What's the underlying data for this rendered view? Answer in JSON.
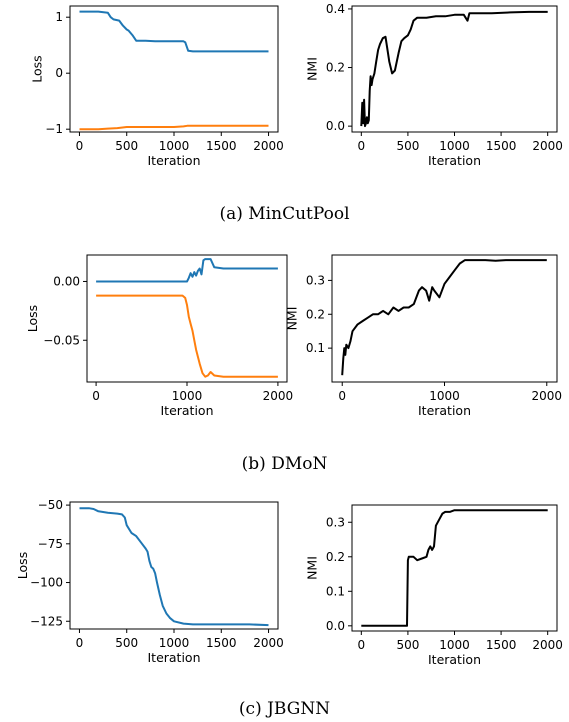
{
  "captions": [
    "(a)  MinCutPool",
    "(b)  DMoN",
    "(c)  JBGNN"
  ],
  "colors": {
    "series1": "#1f77b4",
    "series2": "#ff7f0e",
    "nmi": "#000000"
  },
  "chart_data": [
    {
      "type": "line",
      "xlabel": "Iteration",
      "ylabel": "Loss",
      "xlim": [
        -100,
        2100
      ],
      "ylim": [
        -1.05,
        1.2
      ],
      "xticks": [
        0,
        500,
        1000,
        1500,
        2000
      ],
      "xtick_labels": [
        "0",
        "500",
        "1000",
        "1500",
        "2000"
      ],
      "yticks": [
        -1,
        0,
        1
      ],
      "ytick_labels": [
        "−1",
        "0",
        "1"
      ],
      "series": [
        {
          "color": "#1f77b4",
          "x": [
            0,
            100,
            200,
            300,
            330,
            360,
            420,
            460,
            500,
            520,
            560,
            600,
            700,
            800,
            900,
            1000,
            1100,
            1120,
            1150,
            1200,
            1400,
            1600,
            1800,
            2000
          ],
          "y": [
            1.1,
            1.1,
            1.1,
            1.08,
            1.0,
            0.96,
            0.94,
            0.85,
            0.78,
            0.76,
            0.68,
            0.58,
            0.58,
            0.57,
            0.57,
            0.57,
            0.57,
            0.55,
            0.4,
            0.39,
            0.39,
            0.39,
            0.39,
            0.39
          ]
        },
        {
          "color": "#ff7f0e",
          "x": [
            0,
            100,
            200,
            300,
            400,
            500,
            600,
            700,
            800,
            900,
            1000,
            1100,
            1140,
            1200,
            1400,
            1600,
            1800,
            2000
          ],
          "y": [
            -1.0,
            -1.0,
            -1.0,
            -0.99,
            -0.98,
            -0.96,
            -0.96,
            -0.96,
            -0.96,
            -0.96,
            -0.96,
            -0.95,
            -0.94,
            -0.94,
            -0.94,
            -0.94,
            -0.94,
            -0.94
          ]
        }
      ]
    },
    {
      "type": "line",
      "xlabel": "Iteration",
      "ylabel": "NMI",
      "xlim": [
        -100,
        2100
      ],
      "ylim": [
        -0.02,
        0.41
      ],
      "xticks": [
        0,
        500,
        1000,
        1500,
        2000
      ],
      "xtick_labels": [
        "0",
        "500",
        "1000",
        "1500",
        "2000"
      ],
      "yticks": [
        0.0,
        0.2,
        0.4
      ],
      "ytick_labels": [
        "0.0",
        "0.2",
        "0.4"
      ],
      "series": [
        {
          "color": "#000000",
          "x": [
            0,
            10,
            20,
            30,
            40,
            50,
            60,
            70,
            80,
            90,
            100,
            110,
            120,
            140,
            160,
            180,
            200,
            230,
            260,
            300,
            330,
            360,
            400,
            430,
            460,
            500,
            530,
            560,
            600,
            700,
            800,
            900,
            1000,
            1100,
            1140,
            1160,
            1200,
            1400,
            1600,
            1800,
            2000
          ],
          "y": [
            0.0,
            0.08,
            0.01,
            0.09,
            0.0,
            0.01,
            0.03,
            0.01,
            0.02,
            0.12,
            0.17,
            0.14,
            0.16,
            0.18,
            0.22,
            0.26,
            0.28,
            0.3,
            0.305,
            0.22,
            0.18,
            0.19,
            0.25,
            0.29,
            0.3,
            0.31,
            0.33,
            0.36,
            0.37,
            0.37,
            0.375,
            0.375,
            0.38,
            0.38,
            0.36,
            0.385,
            0.385,
            0.385,
            0.388,
            0.39,
            0.39
          ]
        }
      ]
    },
    {
      "type": "line",
      "xlabel": "Iteration",
      "ylabel": "Loss",
      "xlim": [
        -100,
        2100
      ],
      "ylim": [
        -0.0855,
        0.0225
      ],
      "xticks": [
        0,
        1000,
        2000
      ],
      "xtick_labels": [
        "0",
        "1000",
        "2000"
      ],
      "yticks": [
        0.0,
        -0.05
      ],
      "ytick_labels": [
        "0.00",
        "−0.05"
      ],
      "series": [
        {
          "color": "#1f77b4",
          "x": [
            0,
            200,
            400,
            600,
            800,
            1000,
            1020,
            1040,
            1060,
            1080,
            1100,
            1120,
            1140,
            1160,
            1180,
            1200,
            1220,
            1260,
            1300,
            1400,
            1600,
            1800,
            2000
          ],
          "y": [
            0.0,
            0.0,
            0.0,
            0.0,
            0.0,
            0.0,
            0.003,
            0.007,
            0.004,
            0.008,
            0.005,
            0.009,
            0.011,
            0.006,
            0.018,
            0.019,
            0.019,
            0.019,
            0.012,
            0.011,
            0.011,
            0.011,
            0.011
          ]
        },
        {
          "color": "#ff7f0e",
          "x": [
            0,
            200,
            400,
            600,
            800,
            950,
            980,
            1000,
            1020,
            1040,
            1060,
            1080,
            1100,
            1140,
            1170,
            1200,
            1230,
            1260,
            1300,
            1400,
            1600,
            1800,
            2000
          ],
          "y": [
            -0.012,
            -0.012,
            -0.012,
            -0.012,
            -0.012,
            -0.012,
            -0.014,
            -0.02,
            -0.03,
            -0.036,
            -0.042,
            -0.05,
            -0.058,
            -0.07,
            -0.078,
            -0.081,
            -0.08,
            -0.077,
            -0.08,
            -0.081,
            -0.081,
            -0.081,
            -0.081
          ]
        }
      ]
    },
    {
      "type": "line",
      "xlabel": "Iteration",
      "ylabel": "NMI",
      "xlim": [
        -100,
        2100
      ],
      "ylim": [
        0.0,
        0.375
      ],
      "xticks": [
        0,
        1000,
        2000
      ],
      "xtick_labels": [
        "0",
        "1000",
        "2000"
      ],
      "yticks": [
        0.1,
        0.2,
        0.3
      ],
      "ytick_labels": [
        "0.1",
        "0.2",
        "0.3"
      ],
      "series": [
        {
          "color": "#000000",
          "x": [
            0,
            10,
            20,
            30,
            40,
            60,
            80,
            100,
            150,
            200,
            250,
            300,
            350,
            400,
            450,
            500,
            550,
            600,
            650,
            700,
            750,
            780,
            820,
            850,
            880,
            900,
            950,
            1000,
            1050,
            1100,
            1150,
            1200,
            1250,
            1300,
            1400,
            1500,
            1600,
            1800,
            2000
          ],
          "y": [
            0.02,
            0.07,
            0.1,
            0.08,
            0.11,
            0.1,
            0.12,
            0.15,
            0.17,
            0.18,
            0.19,
            0.2,
            0.2,
            0.21,
            0.2,
            0.22,
            0.21,
            0.22,
            0.22,
            0.23,
            0.27,
            0.28,
            0.27,
            0.24,
            0.28,
            0.27,
            0.25,
            0.29,
            0.31,
            0.33,
            0.35,
            0.36,
            0.36,
            0.36,
            0.36,
            0.358,
            0.36,
            0.36,
            0.36
          ]
        }
      ]
    },
    {
      "type": "line",
      "xlabel": "Iteration",
      "ylabel": "Loss",
      "xlim": [
        -100,
        2100
      ],
      "ylim": [
        -130,
        -48
      ],
      "xticks": [
        0,
        500,
        1000,
        1500,
        2000
      ],
      "xtick_labels": [
        "0",
        "500",
        "1000",
        "1500",
        "2000"
      ],
      "yticks": [
        -50,
        -75,
        -100,
        -125
      ],
      "ytick_labels": [
        "−50",
        "−75",
        "−100",
        "−125"
      ],
      "series": [
        {
          "color": "#1f77b4",
          "x": [
            0,
            100,
            150,
            200,
            300,
            400,
            450,
            480,
            500,
            550,
            600,
            650,
            700,
            720,
            740,
            760,
            780,
            800,
            820,
            850,
            880,
            920,
            960,
            1000,
            1100,
            1200,
            1400,
            1600,
            1800,
            2000
          ],
          "y": [
            -52,
            -52,
            -52.5,
            -54,
            -55,
            -55.5,
            -56,
            -58,
            -63,
            -68,
            -70,
            -74,
            -78,
            -80,
            -86,
            -90,
            -91,
            -94,
            -100,
            -108,
            -115,
            -120,
            -123,
            -125,
            -126.5,
            -127,
            -127,
            -127,
            -127,
            -127.5
          ]
        }
      ]
    },
    {
      "type": "line",
      "xlabel": "Iteration",
      "ylabel": "NMI",
      "xlim": [
        -100,
        2100
      ],
      "ylim": [
        -0.015,
        0.35
      ],
      "xticks": [
        0,
        500,
        1000,
        1500,
        2000
      ],
      "xtick_labels": [
        "0",
        "500",
        "1000",
        "1500",
        "2000"
      ],
      "yticks": [
        0.0,
        0.1,
        0.2,
        0.3
      ],
      "ytick_labels": [
        "0.0",
        "0.1",
        "0.2",
        "0.3"
      ],
      "series": [
        {
          "color": "#000000",
          "x": [
            0,
            100,
            200,
            300,
            400,
            490,
            500,
            510,
            530,
            560,
            600,
            650,
            700,
            720,
            740,
            760,
            780,
            800,
            820,
            840,
            870,
            900,
            950,
            1000,
            1200,
            1400,
            1600,
            1800,
            2000
          ],
          "y": [
            0.0,
            0.0,
            0.0,
            0.0,
            0.0,
            0.0,
            0.19,
            0.2,
            0.2,
            0.2,
            0.19,
            0.195,
            0.2,
            0.22,
            0.23,
            0.22,
            0.23,
            0.29,
            0.3,
            0.31,
            0.325,
            0.33,
            0.33,
            0.335,
            0.335,
            0.335,
            0.335,
            0.335,
            0.335
          ]
        }
      ]
    }
  ]
}
